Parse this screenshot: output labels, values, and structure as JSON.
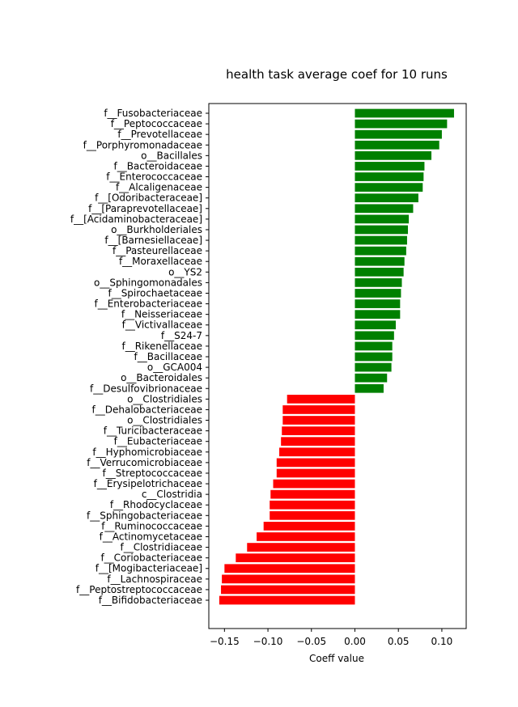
{
  "chart_data": {
    "type": "bar",
    "orientation": "horizontal",
    "title": "health task average coef for 10 runs",
    "xlabel": "Coeff value",
    "ylabel": "",
    "xlim": [
      -0.168,
      0.128
    ],
    "xticks": [
      -0.15,
      -0.1,
      -0.05,
      0.0,
      0.05,
      0.1
    ],
    "xtick_labels": [
      "−0.15",
      "−0.10",
      "−0.05",
      "0.00",
      "0.05",
      "0.10"
    ],
    "grid": false,
    "positive_color": "#008000",
    "negative_color": "#ff0000",
    "categories": [
      "f__Fusobacteriaceae",
      "f__Peptococcaceae",
      "f__Prevotellaceae",
      "f__Porphyromonadaceae",
      "o__Bacillales",
      "f__Bacteroidaceae",
      "f__Enterococcaceae",
      "f__Alcaligenaceae",
      "f__[Odoribacteraceae]",
      "f__[Paraprevotellaceae]",
      "f__[Acidaminobacteraceae]",
      "o__Burkholderiales",
      "f__[Barnesiellaceae]",
      "f__Pasteurellaceae",
      "f__Moraxellaceae",
      "o__YS2",
      "o__Sphingomonadales",
      "f__Spirochaetaceae",
      "f__Enterobacteriaceae",
      "f__Neisseriaceae",
      "f__Victivallaceae",
      "f__S24-7",
      "f__Rikenellaceae",
      "f__Bacillaceae",
      "o__GCA004",
      "o__Bacteroidales",
      "f__Desulfovibrionaceae",
      "o__Clostridiales",
      "f__Dehalobacteriaceae",
      "o__Clostridiales",
      "f__Turicibacteraceae",
      "f__Eubacteriaceae",
      "f__Hyphomicrobiaceae",
      "f__Verrucomicrobiaceae",
      "f__Streptococcaceae",
      "f__Erysipelotrichaceae",
      "c__Clostridia",
      "f__Rhodocyclaceae",
      "f__Sphingobacteriaceae",
      "f__Ruminococcaceae",
      "f__Actinomycetaceae",
      "f__Clostridiaceae",
      "f__Coriobacteriaceae",
      "f__[Mogibacteriaceae]",
      "f__Lachnospiraceae",
      "f__Peptostreptococcaceae",
      "f__Bifidobacteriaceae"
    ],
    "values": [
      0.114,
      0.106,
      0.1,
      0.097,
      0.088,
      0.08,
      0.079,
      0.078,
      0.073,
      0.067,
      0.062,
      0.061,
      0.06,
      0.059,
      0.057,
      0.056,
      0.054,
      0.053,
      0.052,
      0.052,
      0.047,
      0.045,
      0.043,
      0.043,
      0.042,
      0.037,
      0.033,
      -0.078,
      -0.083,
      -0.083,
      -0.084,
      -0.085,
      -0.087,
      -0.09,
      -0.09,
      -0.094,
      -0.097,
      -0.098,
      -0.098,
      -0.105,
      -0.113,
      -0.124,
      -0.137,
      -0.15,
      -0.153,
      -0.154,
      -0.156
    ]
  }
}
